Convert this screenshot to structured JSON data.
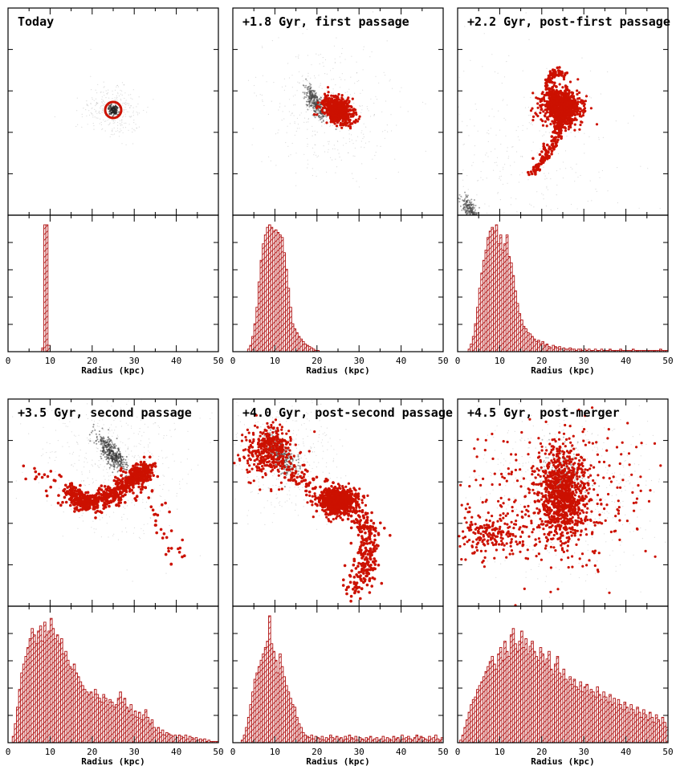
{
  "colors": {
    "stars": "#cc1100",
    "dm": "#333333",
    "frame": "#000000",
    "hatch": "#b01010"
  },
  "panels": [
    {
      "title": "Today"
    },
    {
      "title": "+1.8 Gyr, first passage"
    },
    {
      "title": "+2.2 Gyr, post-first passage"
    },
    {
      "title": "+3.5 Gyr, second passage"
    },
    {
      "title": "+4.0 Gyr, post-second passage"
    },
    {
      "title": "+4.5 Gyr, post-merger"
    }
  ],
  "xlabel": "Radius (kpc)",
  "x_ticks": [
    "0",
    "10",
    "20",
    "30",
    "40",
    "50"
  ],
  "chart_data": [
    {
      "type": "bar",
      "title": "Today",
      "xlabel": "Radius (kpc)",
      "xlim": [
        0,
        50
      ],
      "bin_width": 0.5,
      "bin_start": 0,
      "values": [
        0,
        0,
        0,
        0,
        0,
        0,
        0,
        0,
        0,
        0,
        0,
        0,
        0,
        0,
        0,
        0,
        3,
        100,
        100,
        5,
        0,
        0,
        0,
        0,
        0,
        0,
        0,
        0,
        0,
        0,
        0,
        0,
        0,
        0,
        0,
        0,
        0,
        0,
        0,
        0,
        0,
        0,
        0,
        0,
        0,
        0,
        0,
        0,
        0,
        0,
        0,
        0,
        0,
        0,
        0,
        0,
        0,
        0,
        0,
        0,
        0,
        0,
        0,
        0,
        0,
        0,
        0,
        0,
        0,
        0,
        0,
        0,
        0,
        0,
        0,
        0,
        0,
        0,
        0,
        0,
        0,
        0,
        0,
        0,
        0,
        0,
        0,
        0,
        0,
        0,
        0,
        0,
        0,
        0,
        0,
        0,
        0,
        0,
        0,
        0
      ]
    },
    {
      "type": "bar",
      "title": "+1.8 Gyr, first passage",
      "xlabel": "Radius (kpc)",
      "xlim": [
        0,
        50
      ],
      "bin_width": 0.5,
      "bin_start": 0,
      "values": [
        0,
        0,
        0,
        0,
        0,
        0,
        0,
        2,
        5,
        12,
        22,
        35,
        55,
        72,
        85,
        92,
        98,
        100,
        98,
        95,
        96,
        94,
        92,
        90,
        78,
        65,
        50,
        35,
        22,
        18,
        15,
        12,
        10,
        8,
        6,
        5,
        4,
        3,
        2,
        1,
        1,
        0,
        0,
        0,
        0,
        0,
        0,
        0,
        0,
        0,
        0,
        0,
        0,
        0,
        0,
        0,
        0,
        0,
        0,
        0,
        0,
        0,
        0,
        0,
        0,
        0,
        0,
        0,
        0,
        0,
        0,
        0,
        0,
        0,
        0,
        0,
        0,
        0,
        0,
        0,
        0,
        0,
        0,
        0,
        0,
        0,
        0,
        0,
        0,
        0,
        0,
        0,
        0,
        0,
        0,
        0,
        0,
        0,
        0,
        0
      ]
    },
    {
      "type": "bar",
      "title": "+2.2 Gyr, post-first passage",
      "xlabel": "Radius (kpc)",
      "xlim": [
        0,
        50
      ],
      "bin_width": 0.5,
      "bin_start": 0,
      "values": [
        0,
        0,
        0,
        0,
        0,
        2,
        6,
        12,
        22,
        35,
        50,
        62,
        72,
        80,
        90,
        95,
        98,
        95,
        100,
        85,
        92,
        80,
        85,
        92,
        75,
        70,
        60,
        48,
        38,
        30,
        25,
        20,
        18,
        15,
        14,
        12,
        10,
        8,
        9,
        6,
        8,
        5,
        6,
        4,
        3,
        5,
        4,
        3,
        4,
        2,
        3,
        2,
        2,
        3,
        2,
        2,
        1,
        2,
        2,
        1,
        2,
        1,
        2,
        1,
        1,
        2,
        1,
        1,
        2,
        1,
        1,
        1,
        2,
        1,
        1,
        1,
        1,
        2,
        1,
        1,
        1,
        1,
        1,
        2,
        1,
        1,
        1,
        1,
        1,
        1,
        1,
        1,
        1,
        1,
        1,
        1,
        2,
        1,
        1,
        1
      ]
    },
    {
      "type": "bar",
      "title": "+3.5 Gyr, second passage",
      "xlabel": "Radius (kpc)",
      "xlim": [
        0,
        50
      ],
      "bin_width": 0.5,
      "bin_start": 0,
      "values": [
        0,
        0,
        5,
        15,
        28,
        42,
        55,
        62,
        68,
        75,
        82,
        90,
        85,
        78,
        88,
        92,
        80,
        95,
        85,
        88,
        98,
        90,
        82,
        85,
        78,
        82,
        70,
        72,
        65,
        60,
        58,
        62,
        55,
        52,
        48,
        45,
        42,
        40,
        38,
        40,
        36,
        42,
        38,
        35,
        32,
        38,
        35,
        30,
        34,
        32,
        28,
        30,
        35,
        40,
        32,
        35,
        28,
        25,
        30,
        22,
        25,
        20,
        24,
        18,
        22,
        26,
        20,
        15,
        18,
        12,
        10,
        12,
        8,
        10,
        6,
        8,
        7,
        6,
        5,
        6,
        4,
        6,
        5,
        4,
        6,
        3,
        5,
        4,
        3,
        4,
        2,
        3,
        2,
        3,
        1,
        2,
        1,
        1,
        1,
        1
      ]
    },
    {
      "type": "bar",
      "title": "+4.0 Gyr, post-second passage",
      "xlabel": "Radius (kpc)",
      "xlim": [
        0,
        50
      ],
      "bin_width": 0.5,
      "bin_start": 0,
      "values": [
        0,
        0,
        0,
        0,
        2,
        6,
        12,
        20,
        30,
        40,
        50,
        55,
        60,
        65,
        70,
        75,
        80,
        100,
        78,
        72,
        65,
        55,
        70,
        60,
        52,
        45,
        40,
        35,
        30,
        28,
        20,
        15,
        12,
        8,
        6,
        5,
        4,
        6,
        3,
        5,
        4,
        3,
        5,
        2,
        4,
        3,
        6,
        4,
        3,
        5,
        3,
        4,
        2,
        5,
        3,
        6,
        4,
        3,
        5,
        2,
        4,
        3,
        2,
        4,
        3,
        5,
        2,
        3,
        4,
        2,
        3,
        5,
        2,
        4,
        3,
        2,
        5,
        3,
        4,
        2,
        6,
        3,
        4,
        5,
        3,
        2,
        4,
        6,
        3,
        5,
        4,
        3,
        2,
        5,
        3,
        4,
        6,
        3,
        2,
        4
      ]
    },
    {
      "type": "bar",
      "title": "+4.5 Gyr, post-merger",
      "xlabel": "Radius (kpc)",
      "xlim": [
        0,
        50
      ],
      "bin_width": 0.5,
      "bin_start": 0,
      "values": [
        0,
        2,
        6,
        12,
        18,
        24,
        30,
        34,
        36,
        42,
        45,
        48,
        52,
        56,
        60,
        64,
        68,
        62,
        58,
        70,
        75,
        65,
        80,
        72,
        68,
        85,
        90,
        78,
        72,
        80,
        88,
        75,
        82,
        70,
        76,
        80,
        72,
        68,
        65,
        75,
        70,
        62,
        66,
        72,
        58,
        54,
        62,
        68,
        55,
        52,
        58,
        50,
        48,
        52,
        46,
        50,
        44,
        42,
        48,
        40,
        44,
        46,
        38,
        42,
        40,
        36,
        44,
        38,
        34,
        40,
        36,
        32,
        38,
        30,
        35,
        28,
        34,
        30,
        26,
        32,
        28,
        24,
        30,
        26,
        22,
        28,
        24,
        20,
        26,
        22,
        18,
        24,
        20,
        16,
        22,
        18,
        14,
        20,
        16,
        12
      ]
    }
  ]
}
